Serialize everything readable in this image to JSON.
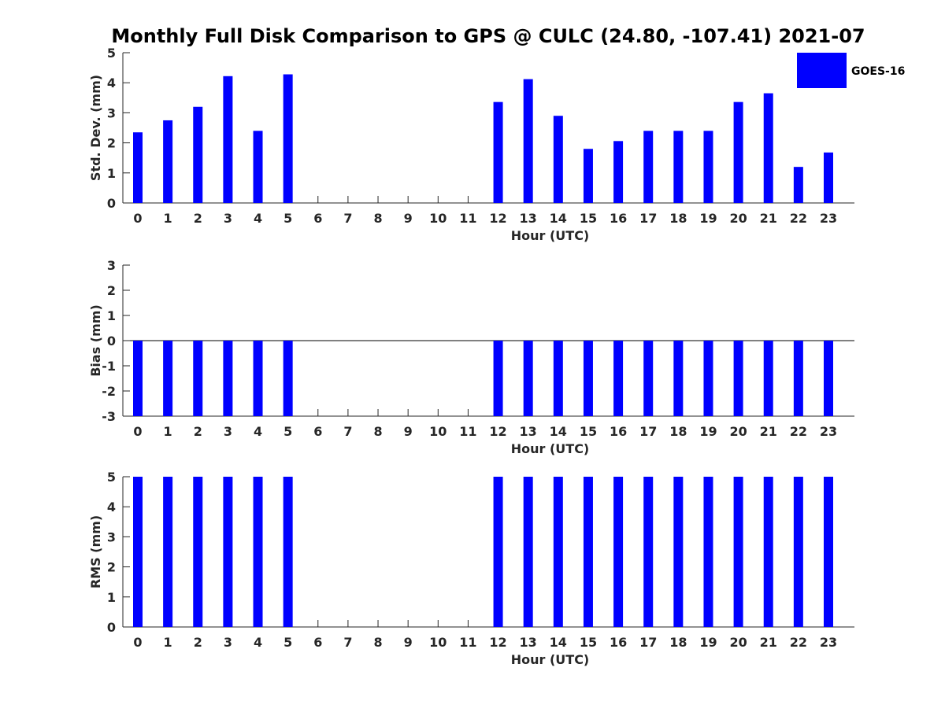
{
  "figure": {
    "title": "Monthly Full Disk Comparison to GPS @ CULC (24.80, -107.41) 2021-07",
    "legend": {
      "label": "GOES-16",
      "color": "#0000ff",
      "placement": "top-right"
    }
  },
  "chart_data": [
    {
      "type": "bar",
      "xlabel": "Hour (UTC)",
      "ylabel": "Std. Dev. (mm)",
      "ylim": [
        0,
        5
      ],
      "yticks": [
        0,
        1,
        2,
        3,
        4,
        5
      ],
      "categories": [
        "0",
        "1",
        "2",
        "3",
        "4",
        "5",
        "6",
        "7",
        "8",
        "9",
        "10",
        "11",
        "12",
        "13",
        "14",
        "15",
        "16",
        "17",
        "18",
        "19",
        "20",
        "21",
        "22",
        "23"
      ],
      "series": [
        {
          "name": "GOES-16",
          "color": "#0000ff",
          "values": [
            2.35,
            2.75,
            3.2,
            4.22,
            2.4,
            4.28,
            null,
            null,
            null,
            null,
            null,
            null,
            3.36,
            4.12,
            2.9,
            1.8,
            2.06,
            2.4,
            2.4,
            2.4,
            3.36,
            3.65,
            1.2,
            1.68
          ]
        }
      ]
    },
    {
      "type": "bar",
      "xlabel": "Hour (UTC)",
      "ylabel": "Bias (mm)",
      "ylim": [
        -3,
        3
      ],
      "yticks": [
        -3,
        -2,
        -1,
        0,
        1,
        2,
        3
      ],
      "categories": [
        "0",
        "1",
        "2",
        "3",
        "4",
        "5",
        "6",
        "7",
        "8",
        "9",
        "10",
        "11",
        "12",
        "13",
        "14",
        "15",
        "16",
        "17",
        "18",
        "19",
        "20",
        "21",
        "22",
        "23"
      ],
      "series": [
        {
          "name": "GOES-16",
          "color": "#0000ff",
          "values": [
            -3,
            -3,
            -3,
            -3,
            -3,
            -3,
            null,
            null,
            null,
            null,
            null,
            null,
            -3,
            -3,
            -3,
            -3,
            -3,
            -3,
            -3,
            -3,
            -3,
            -3,
            -3,
            -3
          ]
        }
      ]
    },
    {
      "type": "bar",
      "xlabel": "Hour (UTC)",
      "ylabel": "RMS (mm)",
      "ylim": [
        0,
        5
      ],
      "yticks": [
        0,
        1,
        2,
        3,
        4,
        5
      ],
      "categories": [
        "0",
        "1",
        "2",
        "3",
        "4",
        "5",
        "6",
        "7",
        "8",
        "9",
        "10",
        "11",
        "12",
        "13",
        "14",
        "15",
        "16",
        "17",
        "18",
        "19",
        "20",
        "21",
        "22",
        "23"
      ],
      "series": [
        {
          "name": "GOES-16",
          "color": "#0000ff",
          "values": [
            5,
            5,
            5,
            5,
            5,
            5,
            null,
            null,
            null,
            null,
            null,
            null,
            5,
            5,
            5,
            5,
            5,
            5,
            5,
            5,
            5,
            5,
            5,
            5
          ]
        }
      ]
    }
  ]
}
